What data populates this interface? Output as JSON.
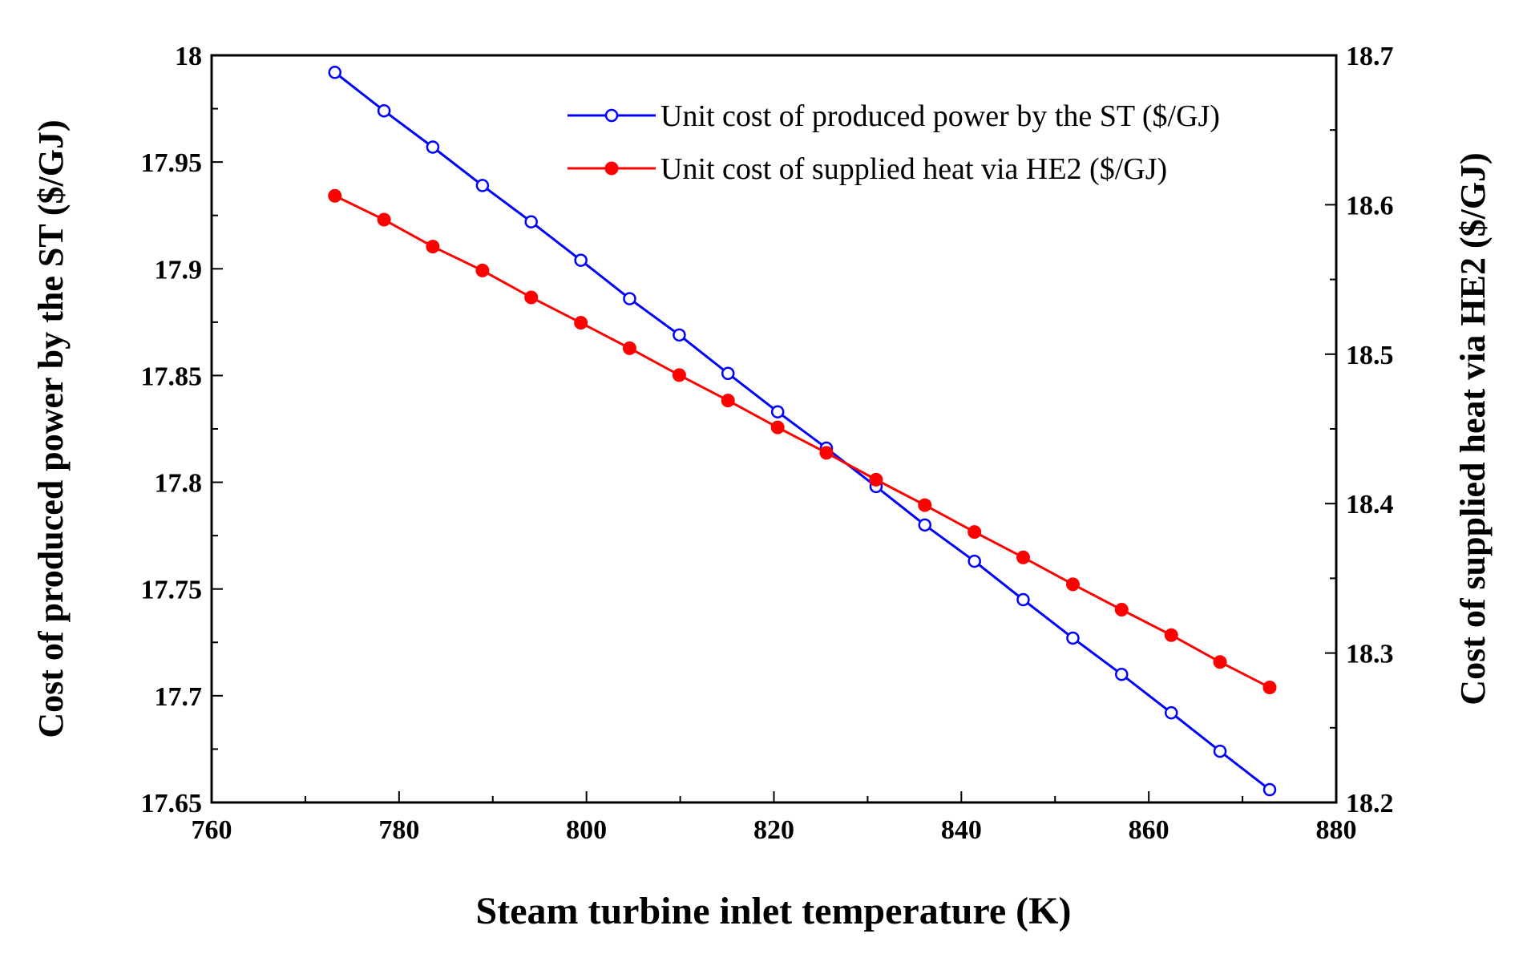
{
  "chart_data": {
    "type": "line",
    "title": "",
    "xlabel": "Steam turbine inlet temperature (K)",
    "ylabel_left": "Cost of produced power by the ST ($/GJ)",
    "ylabel_right": "Cost of supplied heat via HE2 ($/GJ)",
    "xlim": [
      760,
      880
    ],
    "ylim_left": [
      17.65,
      18.0
    ],
    "ylim_right": [
      18.2,
      18.7
    ],
    "x_ticks": [
      "760",
      "780",
      "800",
      "820",
      "840",
      "860",
      "880"
    ],
    "y_left_ticks": [
      "17.65",
      "17.7",
      "17.75",
      "17.8",
      "17.85",
      "17.9",
      "17.95",
      "18"
    ],
    "y_right_ticks": [
      "18.2",
      "18.3",
      "18.4",
      "18.5",
      "18.6",
      "18.7"
    ],
    "legend_position": "top-right",
    "grid": false,
    "x": [
      773.15,
      778.4,
      783.6,
      788.9,
      794.1,
      799.4,
      804.6,
      809.9,
      815.1,
      820.4,
      825.6,
      830.9,
      836.1,
      841.4,
      846.6,
      851.9,
      857.1,
      862.4,
      867.6,
      872.9
    ],
    "series": [
      {
        "name": "Unit cost of produced power by the ST ($/GJ)",
        "axis": "left",
        "color": "#0000ff",
        "marker": "open-circle",
        "values": [
          17.992,
          17.974,
          17.957,
          17.939,
          17.922,
          17.904,
          17.886,
          17.869,
          17.851,
          17.833,
          17.816,
          17.798,
          17.78,
          17.763,
          17.745,
          17.727,
          17.71,
          17.692,
          17.674,
          17.656
        ]
      },
      {
        "name": "Unit cost of supplied heat via HE2 ($/GJ)",
        "axis": "right",
        "color": "#ff0000",
        "marker": "filled-circle",
        "values": [
          18.606,
          18.59,
          18.572,
          18.556,
          18.538,
          18.521,
          18.504,
          18.486,
          18.469,
          18.451,
          18.434,
          18.416,
          18.399,
          18.381,
          18.364,
          18.346,
          18.329,
          18.312,
          18.294,
          18.277
        ]
      }
    ]
  }
}
